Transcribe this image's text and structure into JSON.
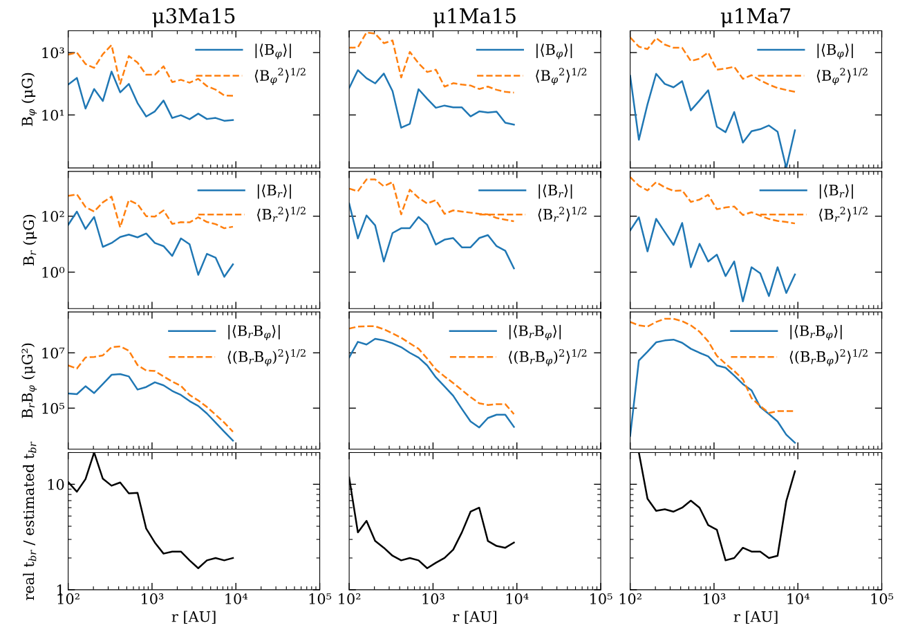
{
  "chart_data": [
    {
      "type": "line",
      "title": "μ3Ma15",
      "ylabel": "B$_{φ}$ (μG)",
      "log": "xy",
      "legend": "top right",
      "tick_labels": "y",
      "x": [
        100,
        127,
        161,
        204,
        259,
        329,
        417,
        529,
        672,
        852,
        1081,
        1372,
        1741,
        2209,
        2803,
        3557,
        4514,
        5728,
        7269,
        9224
      ],
      "xlim": [
        100,
        100000
      ],
      "xticks": [
        {
          "value": 100,
          "label": null
        },
        {
          "value": 1000,
          "label": null
        },
        {
          "value": 10000,
          "label": null
        },
        {
          "value": 100000,
          "label": null
        }
      ],
      "ylim": [
        0.2,
        5000
      ],
      "yticks": [
        {
          "value": 10,
          "label": "10¹"
        },
        {
          "value": 1000,
          "label": "10³"
        }
      ],
      "series": [
        {
          "name": "|⟨B$_{φ}$⟩|",
          "color": "#1f77b4",
          "line_style": "solid",
          "values": [
            94,
            154,
            16,
            68,
            28,
            247,
            53,
            99,
            24,
            8.9,
            13,
            29,
            8.0,
            9.8,
            7.3,
            11,
            7.4,
            8.0,
            6.5,
            6.9
          ]
        },
        {
          "name": "⟨B$_{φ}$$^{2}$⟩$^{1/2}$",
          "color": "#ff7f0e",
          "line_style": "dashed",
          "values": [
            860,
            1000,
            430,
            323,
            890,
            1750,
            99,
            776,
            476,
            195,
            195,
            363,
            113,
            134,
            108,
            144,
            84,
            65,
            42,
            41
          ]
        }
      ]
    },
    {
      "type": "line",
      "title": "μ1Ma15",
      "log": "xy",
      "legend": "top right",
      "tick_labels": false,
      "x": [
        100,
        127,
        161,
        204,
        259,
        329,
        417,
        529,
        672,
        852,
        1081,
        1372,
        1741,
        2209,
        2803,
        3557,
        4514,
        5728,
        7269,
        9224
      ],
      "xlim": [
        100,
        100000
      ],
      "xticks": [
        {
          "value": 100,
          "label": null
        },
        {
          "value": 1000,
          "label": null
        },
        {
          "value": 10000,
          "label": null
        },
        {
          "value": 100000,
          "label": null
        }
      ],
      "ylim": [
        0.2,
        5000
      ],
      "yticks": [
        {
          "value": 10,
          "label": null
        },
        {
          "value": 1000,
          "label": null
        }
      ],
      "series": [
        {
          "name": "|⟨B$_{φ}$⟩|",
          "color": "#1f77b4",
          "line_style": "solid",
          "values": [
            73,
            273,
            151,
            103,
            212,
            58,
            3.9,
            5.2,
            67,
            33,
            17,
            20,
            17.5,
            17.5,
            9.0,
            13,
            12,
            12.7,
            5.6,
            4.9
          ]
        },
        {
          "name": "⟨B$_{φ}$$^{2}$⟩$^{1/2}$",
          "color": "#ff7f0e",
          "line_style": "dashed",
          "values": [
            1425,
            1470,
            4400,
            4050,
            2000,
            2440,
            159,
            1050,
            453,
            238,
            282,
            81,
            104,
            94,
            88,
            68,
            81,
            64,
            55,
            52
          ]
        }
      ]
    },
    {
      "type": "line",
      "title": "μ1Ma7",
      "log": "xy",
      "legend": "top right",
      "tick_labels": false,
      "x": [
        100,
        127,
        161,
        204,
        259,
        329,
        417,
        529,
        672,
        852,
        1081,
        1372,
        1741,
        2209,
        2803,
        3557,
        4514,
        5728,
        7269,
        9224
      ],
      "xlim": [
        100,
        100000
      ],
      "xticks": [
        {
          "value": 100,
          "label": null
        },
        {
          "value": 1000,
          "label": null
        },
        {
          "value": 10000,
          "label": null
        },
        {
          "value": 100000,
          "label": null
        }
      ],
      "ylim": [
        0.2,
        5000
      ],
      "yticks": [
        {
          "value": 10,
          "label": null
        },
        {
          "value": 1000,
          "label": null
        }
      ],
      "series": [
        {
          "name": "|⟨B$_{φ}$⟩|",
          "color": "#1f77b4",
          "line_style": "solid",
          "values": [
            179,
            1.6,
            22,
            208,
            99,
            77,
            121,
            14,
            29,
            62,
            4.2,
            2.8,
            12.4,
            1.3,
            3.0,
            3.5,
            4.6,
            2.9,
            0.2,
            3.2
          ]
        },
        {
          "name": "⟨B$_{φ}$$^{2}$⟩$^{1/2}$",
          "color": "#ff7f0e",
          "line_style": "dashed",
          "values": [
            3050,
            1550,
            1290,
            2900,
            1800,
            1425,
            1425,
            536,
            634,
            1000,
            282,
            307,
            351,
            144,
            188,
            128,
            94,
            73,
            63,
            55
          ]
        }
      ]
    },
    {
      "type": "line",
      "ylabel": "B$_{r}$ (μG)",
      "log": "xy",
      "legend": "top right",
      "tick_labels": "y",
      "x": [
        100,
        127,
        161,
        204,
        259,
        329,
        417,
        529,
        672,
        852,
        1081,
        1372,
        1741,
        2209,
        2803,
        3557,
        4514,
        5728,
        7269,
        9224
      ],
      "xlim": [
        100,
        100000
      ],
      "xticks": [
        {
          "value": 100,
          "label": null
        },
        {
          "value": 1000,
          "label": null
        },
        {
          "value": 10000,
          "label": null
        },
        {
          "value": 100000,
          "label": null
        }
      ],
      "ylim": [
        0.05,
        4000
      ],
      "yticks": [
        {
          "value": 1,
          "label": "10⁰"
        },
        {
          "value": 100,
          "label": "10²"
        }
      ],
      "series": [
        {
          "name": "|⟨B$_{r}$⟩|",
          "color": "#1f77b4",
          "line_style": "solid",
          "values": [
            49,
            146,
            35,
            94,
            8.0,
            11,
            18,
            22,
            17.5,
            24,
            11,
            8.5,
            3.8,
            16,
            9.9,
            0.8,
            4.5,
            3.3,
            0.68,
            1.9
          ]
        },
        {
          "name": "⟨B$_{r}$$^{2}$⟩$^{1/2}$",
          "color": "#ff7f0e",
          "line_style": "dashed",
          "values": [
            530,
            605,
            213,
            146,
            312,
            500,
            40,
            377,
            268,
            100,
            96,
            161,
            53,
            61,
            60,
            91,
            62,
            52,
            37,
            42
          ]
        }
      ]
    },
    {
      "type": "line",
      "log": "xy",
      "legend": "top right",
      "tick_labels": false,
      "x": [
        100,
        127,
        161,
        204,
        259,
        329,
        417,
        529,
        672,
        852,
        1081,
        1372,
        1741,
        2209,
        2803,
        3557,
        4514,
        5728,
        7269,
        9224
      ],
      "xlim": [
        100,
        100000
      ],
      "xticks": [
        {
          "value": 100,
          "label": null
        },
        {
          "value": 1000,
          "label": null
        },
        {
          "value": 10000,
          "label": null
        },
        {
          "value": 100000,
          "label": null
        }
      ],
      "ylim": [
        0.05,
        4000
      ],
      "yticks": [
        {
          "value": 1,
          "label": null
        },
        {
          "value": 100,
          "label": null
        }
      ],
      "series": [
        {
          "name": "|⟨B$_{r}$⟩|",
          "color": "#1f77b4",
          "line_style": "solid",
          "values": [
            284,
            16,
            106,
            47,
            2.4,
            25,
            37,
            37,
            94,
            49,
            9.7,
            14.5,
            16.5,
            7.7,
            7.7,
            16.5,
            21,
            8.5,
            5.8,
            1.36
          ]
        },
        {
          "name": "⟨B$_{r}$$^{2}$⟩$^{1/2}$",
          "color": "#ff7f0e",
          "line_style": "dashed",
          "values": [
            970,
            775,
            2070,
            2070,
            1175,
            1650,
            116,
            885,
            455,
            284,
            377,
            121,
            161,
            146,
            133,
            121,
            116,
            86,
            75,
            66
          ]
        }
      ]
    },
    {
      "type": "line",
      "log": "xy",
      "legend": "top right",
      "tick_labels": false,
      "x": [
        100,
        127,
        161,
        204,
        259,
        329,
        417,
        529,
        672,
        852,
        1081,
        1372,
        1741,
        2209,
        2803,
        3557,
        4514,
        5728,
        7269,
        9224
      ],
      "xlim": [
        100,
        100000
      ],
      "xticks": [
        {
          "value": 100,
          "label": null
        },
        {
          "value": 1000,
          "label": null
        },
        {
          "value": 10000,
          "label": null
        },
        {
          "value": 100000,
          "label": null
        }
      ],
      "ylim": [
        0.05,
        4000
      ],
      "yticks": [
        {
          "value": 1,
          "label": null
        },
        {
          "value": 100,
          "label": null
        }
      ],
      "series": [
        {
          "name": "|⟨B$_{r}$⟩|",
          "color": "#1f77b4",
          "line_style": "solid",
          "values": [
            31,
            91,
            5.5,
            80,
            27,
            9.4,
            57,
            1.5,
            10.3,
            2.4,
            4.2,
            0.72,
            2.4,
            0.09,
            1.5,
            0.91,
            0.14,
            1.5,
            0.18,
            0.83
          ]
        },
        {
          "name": "⟨B$_{r}$$^{2}$⟩$^{1/2}$",
          "color": "#ff7f0e",
          "line_style": "dashed",
          "values": [
            2500,
            1220,
            835,
            1650,
            1070,
            805,
            835,
            324,
            391,
            582,
            177,
            205,
            222,
            110,
            138,
            104,
            80,
            68,
            62,
            55
          ]
        }
      ]
    },
    {
      "type": "line",
      "ylabel": "B$_{r}$B$_{φ}$ (μG²)",
      "log": "xy",
      "legend": "top right",
      "tick_labels": "y",
      "x": [
        100,
        127,
        161,
        204,
        259,
        329,
        417,
        529,
        672,
        852,
        1081,
        1372,
        1741,
        2209,
        2803,
        3557,
        4514,
        5728,
        7269,
        9224
      ],
      "xlim": [
        100,
        100000
      ],
      "xticks": [
        {
          "value": 100,
          "label": null
        },
        {
          "value": 1000,
          "label": null
        },
        {
          "value": 10000,
          "label": null
        },
        {
          "value": 100000,
          "label": null
        }
      ],
      "ylim": [
        3300,
        300000000
      ],
      "yticks": [
        {
          "value": 100000,
          "label": "10⁵"
        },
        {
          "value": 10000000,
          "label": "10⁷"
        }
      ],
      "series": [
        {
          "name": "|⟨B$_{r}$B$_{φ}$⟩|",
          "color": "#1f77b4",
          "line_style": "solid",
          "values": [
            340000,
            320000,
            620000,
            350000,
            740000,
            1600000,
            1700000,
            1400000,
            470000,
            580000,
            860000,
            670000,
            420000,
            300000,
            180000,
            120000,
            64000,
            30000,
            14000,
            6700
          ]
        },
        {
          "name": "⟨(B$_{r}$B$_{φ}$)$^{2}$⟩$^{1/2}$",
          "color": "#ff7f0e",
          "line_style": "dashed",
          "values": [
            3500000,
            2700000,
            6800000,
            7100000,
            8100000,
            16000000,
            17000000,
            12000000,
            3600000,
            2300000,
            2200000,
            1400000,
            910000,
            640000,
            300000,
            190000,
            110000,
            58000,
            30000,
            14000
          ]
        }
      ]
    },
    {
      "type": "line",
      "log": "xy",
      "legend": "top right",
      "tick_labels": false,
      "x": [
        100,
        127,
        161,
        204,
        259,
        329,
        417,
        529,
        672,
        852,
        1081,
        1372,
        1741,
        2209,
        2803,
        3557,
        4514,
        5728,
        7269,
        9224
      ],
      "xlim": [
        100,
        100000
      ],
      "xticks": [
        {
          "value": 100,
          "label": null
        },
        {
          "value": 1000,
          "label": null
        },
        {
          "value": 10000,
          "label": null
        },
        {
          "value": 100000,
          "label": null
        }
      ],
      "ylim": [
        3300,
        300000000
      ],
      "yticks": [
        {
          "value": 100000,
          "label": null
        },
        {
          "value": 10000000,
          "label": null
        }
      ],
      "series": [
        {
          "name": "|⟨B$_{r}$B$_{φ}$⟩|",
          "color": "#1f77b4",
          "line_style": "solid",
          "values": [
            6800000,
            25000000,
            20000000,
            32000000,
            28000000,
            22000000,
            16000000,
            10000000,
            6700000,
            3500000,
            1300000,
            610000,
            280000,
            94000,
            33000,
            20000,
            44000,
            58000,
            58000,
            21000
          ]
        },
        {
          "name": "⟨(B$_{r}$B$_{φ}$)$^{2}$⟩$^{1/2}$",
          "color": "#ff7f0e",
          "line_style": "dashed",
          "values": [
            75000000,
            89000000,
            91000000,
            91000000,
            71000000,
            50000000,
            35000000,
            22000000,
            14000000,
            6200000,
            2500000,
            1400000,
            810000,
            450000,
            250000,
            150000,
            130000,
            140000,
            140000,
            61000
          ]
        }
      ]
    },
    {
      "type": "line",
      "log": "xy",
      "legend": "top right",
      "tick_labels": false,
      "x": [
        100,
        127,
        161,
        204,
        259,
        329,
        417,
        529,
        672,
        852,
        1081,
        1372,
        1741,
        2209,
        2803,
        3557,
        4514,
        5728,
        7269,
        9224
      ],
      "xlim": [
        100,
        100000
      ],
      "xticks": [
        {
          "value": 100,
          "label": null
        },
        {
          "value": 1000,
          "label": null
        },
        {
          "value": 10000,
          "label": null
        },
        {
          "value": 100000,
          "label": null
        }
      ],
      "ylim": [
        3300,
        300000000
      ],
      "yticks": [
        {
          "value": 100000,
          "label": null
        },
        {
          "value": 10000000,
          "label": null
        }
      ],
      "series": [
        {
          "name": "|⟨B$_{r}$B$_{φ}$⟩|",
          "color": "#1f77b4",
          "line_style": "solid",
          "values": [
            10000,
            5300000,
            11000000,
            24000000,
            28000000,
            30000000,
            23000000,
            14000000,
            10000000,
            7400000,
            3500000,
            2900000,
            1500000,
            740000,
            440000,
            110000,
            61000,
            33000,
            11000,
            5600
          ]
        },
        {
          "name": "⟨(B$_{r}$B$_{φ}$)$^{2}$⟩$^{1/2}$",
          "color": "#ff7f0e",
          "line_style": "dashed",
          "values": [
            130000000,
            98000000,
            89000000,
            130000000,
            170000000,
            170000000,
            140000000,
            98000000,
            58000000,
            26000000,
            7800000,
            4000000,
            2200000,
            1100000,
            230000,
            120000,
            67000,
            78000,
            78000,
            78000
          ]
        }
      ]
    },
    {
      "type": "line",
      "xlabel": "r [AU]",
      "ylabel": "real t$_{br}$ / estimated t$_{br}$",
      "log": "xy",
      "x": [
        100,
        127,
        161,
        204,
        259,
        329,
        417,
        529,
        672,
        852,
        1081,
        1372,
        1741,
        2209,
        2803,
        3557,
        4514,
        5728,
        7269,
        9224
      ],
      "xlim": [
        100,
        100000
      ],
      "xticks": [
        {
          "value": 100,
          "label": "10²"
        },
        {
          "value": 1000,
          "label": "10³"
        },
        {
          "value": 10000,
          "label": "10⁴"
        },
        {
          "value": 100000,
          "label": "10⁵"
        }
      ],
      "ylim": [
        1,
        20
      ],
      "yticks": [
        1,
        10
      ],
      "series": [
        {
          "color": "#000000",
          "line_style": "solid",
          "values": [
            10.5,
            8.5,
            11.2,
            20,
            11.3,
            9.7,
            10.4,
            8.2,
            8.3,
            3.8,
            2.8,
            2.2,
            2.3,
            2.3,
            1.9,
            1.6,
            1.9,
            2.0,
            1.9,
            2.0
          ]
        }
      ]
    },
    {
      "type": "line",
      "xlabel": "r [AU]",
      "log": "xy",
      "tick_labels": "x",
      "x": [
        100,
        127,
        161,
        204,
        259,
        329,
        417,
        529,
        672,
        852,
        1081,
        1372,
        1741,
        2209,
        2803,
        3557,
        4514,
        5728,
        7269,
        9224
      ],
      "xlim": [
        100,
        100000
      ],
      "xticks": [
        {
          "value": 100,
          "label": "10²"
        },
        {
          "value": 1000,
          "label": "10³"
        },
        {
          "value": 10000,
          "label": "10⁴"
        },
        {
          "value": 100000,
          "label": "10⁵"
        }
      ],
      "ylim": [
        1,
        20
      ],
      "yticks": [
        {
          "value": 1,
          "label": null
        },
        {
          "value": 10,
          "label": null
        }
      ],
      "series": [
        {
          "color": "#000000",
          "line_style": "solid",
          "values": [
            11.6,
            3.5,
            4.5,
            2.9,
            2.5,
            2.1,
            1.9,
            2.0,
            1.9,
            1.6,
            1.8,
            2.0,
            2.4,
            3.5,
            5.5,
            6.0,
            2.9,
            2.6,
            2.5,
            2.8
          ]
        }
      ]
    },
    {
      "type": "line",
      "xlabel": "r [AU]",
      "log": "xy",
      "tick_labels": "x",
      "xlim": [
        100,
        100000
      ],
      "xticks": [
        {
          "value": 100,
          "label": "10²"
        },
        {
          "value": 1000,
          "label": "10³"
        },
        {
          "value": 10000,
          "label": "10⁴"
        },
        {
          "value": 100000,
          "label": "10⁵"
        }
      ],
      "ylim": [
        1,
        20
      ],
      "yticks": [
        {
          "value": 1,
          "label": null
        },
        {
          "value": 10,
          "label": null
        }
      ],
      "series": [
        {
          "color": "#000000",
          "line_style": "solid",
          "x": [
            127,
            161,
            204,
            259,
            329,
            417,
            529,
            672,
            852,
            1081,
            1372,
            1741,
            2209,
            2803,
            3557,
            4514,
            5728,
            7269,
            9224
          ],
          "values": [
            20,
            7.3,
            5.6,
            5.8,
            5.5,
            6.0,
            7.0,
            6.0,
            4.1,
            3.7,
            1.9,
            2.0,
            2.5,
            2.3,
            2.3,
            2.0,
            2.1,
            6.9,
            13.3
          ]
        }
      ]
    }
  ]
}
